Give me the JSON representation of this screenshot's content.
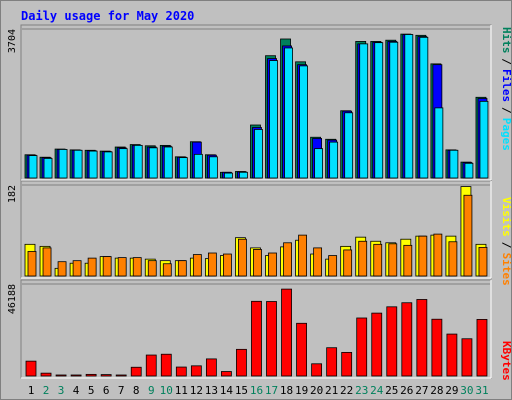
{
  "title": "Daily usage for May 2020",
  "colors": {
    "hits": "#00805c",
    "files": "#0000ff",
    "pages": "#00e0ff",
    "visits": "#ffff00",
    "sites": "#ff8000",
    "kbytes": "#ff0000",
    "weekend_day": "#00805c",
    "weekday": "#000000"
  },
  "chart_data": [
    {
      "type": "bar",
      "x": [
        1,
        2,
        3,
        4,
        5,
        6,
        7,
        8,
        9,
        10,
        11,
        12,
        13,
        14,
        15,
        16,
        17,
        18,
        19,
        20,
        21,
        22,
        23,
        24,
        25,
        26,
        27,
        28,
        29,
        30,
        31
      ],
      "ymax_label": "3704",
      "ylim": [
        0,
        3704
      ],
      "legend": [
        "Pages",
        "Files",
        "Hits"
      ],
      "series": [
        {
          "name": "Hits",
          "values": [
            570,
            510,
            710,
            690,
            680,
            660,
            760,
            820,
            790,
            800,
            520,
            890,
            570,
            140,
            160,
            1300,
            3000,
            3410,
            2850,
            1000,
            950,
            1650,
            3350,
            3350,
            3380,
            3530,
            3500,
            2800,
            690,
            390,
            1980
          ]
        },
        {
          "name": "Files",
          "values": [
            560,
            500,
            700,
            680,
            670,
            650,
            740,
            800,
            760,
            780,
            510,
            880,
            560,
            140,
            150,
            1240,
            2930,
            3240,
            2780,
            970,
            930,
            1640,
            3290,
            3330,
            3350,
            3520,
            3470,
            2780,
            680,
            380,
            1950
          ]
        },
        {
          "name": "Pages",
          "values": [
            550,
            480,
            700,
            680,
            660,
            640,
            720,
            800,
            740,
            760,
            500,
            580,
            520,
            120,
            140,
            1190,
            2880,
            3190,
            2750,
            720,
            880,
            1600,
            3290,
            3320,
            3330,
            3520,
            3450,
            1720,
            680,
            360,
            1880
          ]
        }
      ]
    },
    {
      "type": "bar",
      "x": [
        1,
        2,
        3,
        4,
        5,
        6,
        7,
        8,
        9,
        10,
        11,
        12,
        13,
        14,
        15,
        16,
        17,
        18,
        19,
        20,
        21,
        22,
        23,
        24,
        25,
        26,
        27,
        28,
        29,
        30,
        31
      ],
      "ymax_label": "182",
      "ylim": [
        0,
        182
      ],
      "legend": [
        "Sites",
        "Visits"
      ],
      "series": [
        {
          "name": "Visits",
          "values": [
            62,
            58,
            15,
            25,
            25,
            38,
            35,
            35,
            33,
            30,
            30,
            35,
            34,
            40,
            75,
            55,
            40,
            57,
            70,
            43,
            33,
            58,
            76,
            68,
            65,
            72,
            78,
            80,
            78,
            175,
            62
          ]
        },
        {
          "name": "Sites",
          "values": [
            48,
            55,
            28,
            30,
            35,
            38,
            36,
            36,
            30,
            24,
            30,
            42,
            45,
            43,
            72,
            52,
            45,
            65,
            80,
            55,
            40,
            51,
            68,
            62,
            63,
            60,
            78,
            82,
            67,
            158,
            56
          ]
        }
      ]
    },
    {
      "type": "bar",
      "x": [
        1,
        2,
        3,
        4,
        5,
        6,
        7,
        8,
        9,
        10,
        11,
        12,
        13,
        14,
        15,
        16,
        17,
        18,
        19,
        20,
        21,
        22,
        23,
        24,
        25,
        26,
        27,
        28,
        29,
        30,
        31
      ],
      "ymax_label": "46188",
      "ylim": [
        0,
        46188
      ],
      "legend": [
        "KBytes"
      ],
      "series": [
        {
          "name": "KBytes",
          "values": [
            7300,
            1400,
            500,
            500,
            800,
            700,
            500,
            4300,
            10300,
            10700,
            4400,
            5000,
            8400,
            2200,
            13100,
            36700,
            36600,
            42700,
            25900,
            6000,
            13900,
            11600,
            28500,
            30900,
            34000,
            36000,
            37600,
            27900,
            20600,
            18300,
            27800
          ]
        }
      ]
    }
  ]
}
